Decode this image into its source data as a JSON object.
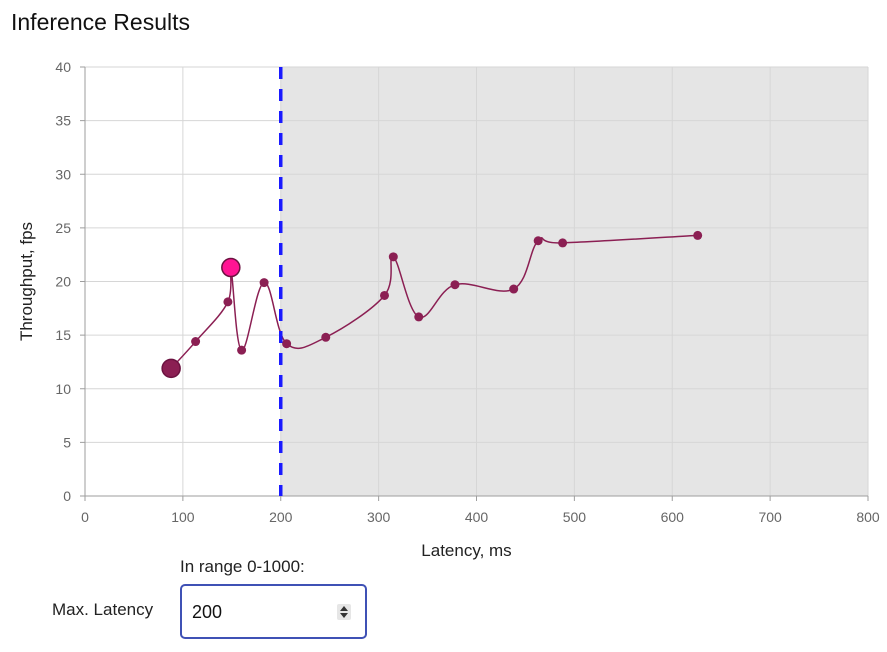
{
  "title": "Inference Results",
  "chart_data": {
    "type": "line",
    "xlabel": "Latency, ms",
    "ylabel": "Throughput, fps",
    "xlim": [
      0,
      800
    ],
    "ylim": [
      0,
      40
    ],
    "x_ticks": [
      0,
      100,
      200,
      300,
      400,
      500,
      600,
      700,
      800
    ],
    "y_ticks": [
      0,
      5,
      10,
      15,
      20,
      25,
      30,
      35,
      40
    ],
    "grid": true,
    "threshold_line": {
      "x": 200,
      "style": "dashed",
      "color": "#1a1aff"
    },
    "shaded_region": {
      "x_from": 200,
      "x_to": 800,
      "color": "#e5e5e5"
    },
    "series": [
      {
        "name": "throughput",
        "color": "#8b1f53",
        "points": [
          {
            "x": 88,
            "y": 11.9
          },
          {
            "x": 113,
            "y": 14.4
          },
          {
            "x": 146,
            "y": 18.1
          },
          {
            "x": 149,
            "y": 21.3
          },
          {
            "x": 160,
            "y": 13.6
          },
          {
            "x": 183,
            "y": 19.9
          },
          {
            "x": 206,
            "y": 14.2
          },
          {
            "x": 246,
            "y": 14.8
          },
          {
            "x": 306,
            "y": 18.7
          },
          {
            "x": 315,
            "y": 22.3
          },
          {
            "x": 341,
            "y": 16.7
          },
          {
            "x": 378,
            "y": 19.7
          },
          {
            "x": 438,
            "y": 19.3
          },
          {
            "x": 463,
            "y": 23.8
          },
          {
            "x": 488,
            "y": 23.6
          },
          {
            "x": 626,
            "y": 24.3
          }
        ]
      }
    ],
    "highlighted_points": [
      {
        "x": 88,
        "y": 11.9,
        "color": "#8b1f53"
      },
      {
        "x": 149,
        "y": 21.3,
        "color": "#ff1493"
      }
    ]
  },
  "controls": {
    "range_hint": "In range 0-1000:",
    "max_latency_label": "Max. Latency",
    "max_latency_value": "200"
  }
}
